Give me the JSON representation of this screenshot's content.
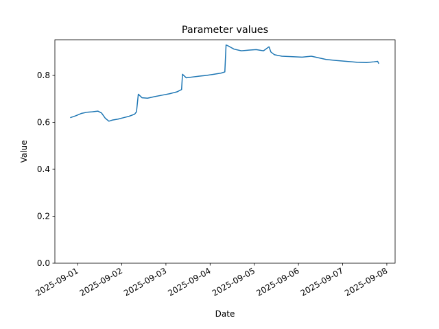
{
  "chart_data": {
    "type": "line",
    "title": "Parameter values",
    "x_label": "Date",
    "y_label": "Value",
    "color": "#1f77b4",
    "x": [
      "2025-08-31T20:00",
      "2025-08-31T23:00",
      "2025-09-01T02:00",
      "2025-09-01T05:00",
      "2025-09-01T08:00",
      "2025-09-01T11:00",
      "2025-09-01T13:00",
      "2025-09-01T15:00",
      "2025-09-01T17:00",
      "2025-09-01T19:00",
      "2025-09-01T22:00",
      "2025-09-02T01:00",
      "2025-09-02T04:00",
      "2025-09-02T07:00",
      "2025-09-02T08:00",
      "2025-09-02T09:00",
      "2025-09-02T11:00",
      "2025-09-02T14:00",
      "2025-09-02T18:00",
      "2025-09-02T22:00",
      "2025-09-03T02:00",
      "2025-09-03T06:00",
      "2025-09-03T08:30",
      "2025-09-03T09:00",
      "2025-09-03T11:00",
      "2025-09-03T14:00",
      "2025-09-03T18:00",
      "2025-09-03T22:00",
      "2025-09-04T02:00",
      "2025-09-04T06:00",
      "2025-09-04T08:00",
      "2025-09-04T08:40",
      "2025-09-04T10:00",
      "2025-09-04T13:00",
      "2025-09-04T17:00",
      "2025-09-04T21:00",
      "2025-09-05T01:00",
      "2025-09-05T05:00",
      "2025-09-05T08:00",
      "2025-09-05T09:00",
      "2025-09-05T11:00",
      "2025-09-05T15:00",
      "2025-09-05T20:00",
      "2025-09-06T02:00",
      "2025-09-06T07:00",
      "2025-09-06T11:00",
      "2025-09-06T15:00",
      "2025-09-06T20:00",
      "2025-09-07T02:00",
      "2025-09-07T08:00",
      "2025-09-07T13:00",
      "2025-09-07T17:00",
      "2025-09-07T19:00",
      "2025-09-07T19:40"
    ],
    "values": [
      0.62,
      0.628,
      0.638,
      0.643,
      0.645,
      0.648,
      0.64,
      0.618,
      0.605,
      0.61,
      0.614,
      0.62,
      0.626,
      0.635,
      0.645,
      0.72,
      0.705,
      0.703,
      0.71,
      0.716,
      0.722,
      0.73,
      0.74,
      0.805,
      0.79,
      0.793,
      0.797,
      0.8,
      0.805,
      0.81,
      0.815,
      0.93,
      0.925,
      0.912,
      0.905,
      0.908,
      0.91,
      0.905,
      0.922,
      0.9,
      0.888,
      0.882,
      0.88,
      0.878,
      0.882,
      0.875,
      0.868,
      0.864,
      0.86,
      0.856,
      0.855,
      0.858,
      0.86,
      0.85
    ],
    "xlim": [
      "2025-08-31T11:40",
      "2025-09-08T04:30"
    ],
    "xticks": [
      "2025-09-01",
      "2025-09-02",
      "2025-09-03",
      "2025-09-04",
      "2025-09-05",
      "2025-09-06",
      "2025-09-07",
      "2025-09-08"
    ],
    "ylim": [
      0,
      0.952
    ],
    "yticks": [
      {
        "value": 0,
        "label": "0.0"
      },
      0.2,
      0.4,
      0.6,
      0.8
    ]
  }
}
